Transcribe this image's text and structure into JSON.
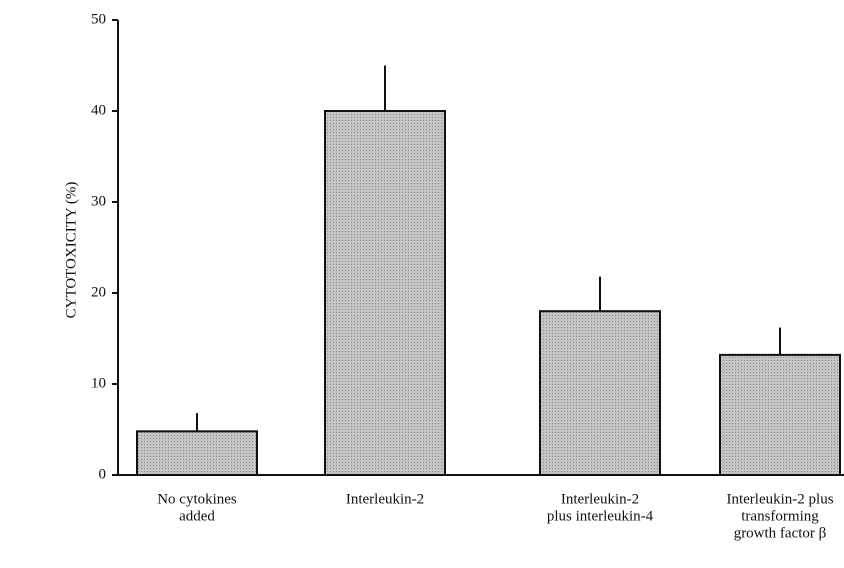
{
  "chart_data": {
    "type": "bar",
    "ylabel": "CYTOTOXICITY (%)",
    "categories": [
      [
        "No  cytokines",
        "added"
      ],
      [
        "Interleukin-2"
      ],
      [
        "Interleukin-2",
        "plus  interleukin-4"
      ],
      [
        "Interleukin-2  plus",
        "transforming",
        "growth  factor  β"
      ]
    ],
    "values": [
      4.8,
      40,
      18,
      13.2
    ],
    "errors": [
      2,
      5,
      3.8,
      3
    ],
    "color": "#c4c4c4",
    "ylim": [
      0,
      50
    ],
    "yticks": [
      0,
      10,
      20,
      30,
      40,
      50
    ]
  }
}
